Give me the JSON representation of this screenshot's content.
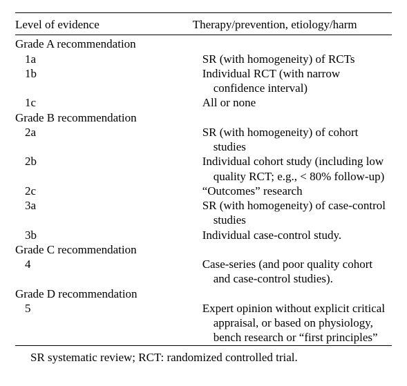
{
  "header": {
    "left": "Level of evidence",
    "right": "Therapy/prevention, etiology/harm"
  },
  "grades": [
    {
      "label": "Grade A recommendation",
      "items": [
        {
          "code": "1a",
          "desc": "SR (with homogeneity) of RCTs"
        },
        {
          "code": "1b",
          "desc": "Individual RCT (with narrow confidence interval)"
        },
        {
          "code": "1c",
          "desc": "All or none"
        }
      ]
    },
    {
      "label": "Grade B recommendation",
      "items": [
        {
          "code": "2a",
          "desc": "SR (with homogeneity) of cohort studies"
        },
        {
          "code": "2b",
          "desc": "Individual cohort study (including low quality RCT; e.g., < 80% follow-up)"
        },
        {
          "code": "2c",
          "desc": "“Outcomes” research"
        },
        {
          "code": "3a",
          "desc": "SR (with homogeneity) of case-control studies"
        },
        {
          "code": "3b",
          "desc": "Individual case-control study."
        }
      ]
    },
    {
      "label": "Grade C recommendation",
      "items": [
        {
          "code": "4",
          "desc": "Case-series (and poor quality cohort and case-control studies)."
        }
      ]
    },
    {
      "label": "Grade D recommendation",
      "items": [
        {
          "code": "5",
          "desc": "Expert opinion without explicit critical appraisal, or based on physiology, bench research or “first principles”"
        }
      ]
    }
  ],
  "footnote": "SR systematic review; RCT: randomized controlled trial."
}
